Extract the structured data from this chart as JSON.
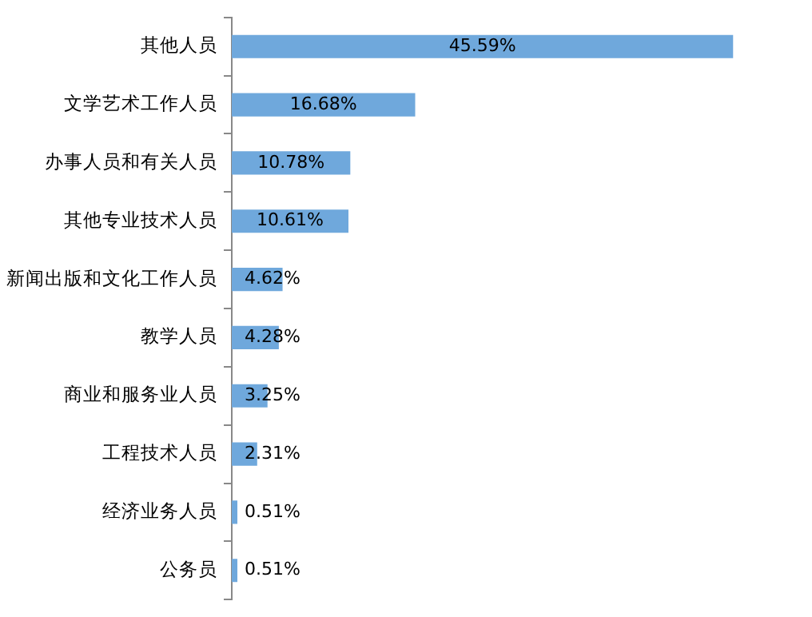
{
  "chart_data": {
    "type": "bar",
    "orientation": "horizontal",
    "categories": [
      "其他人员",
      "文学艺术工作人员",
      "办事人员和有关人员",
      "其他专业技术人员",
      "新闻出版和文化工作人员",
      "教学人员",
      "商业和服务业人员",
      "工程技术人员",
      "经济业务人员",
      "公务员"
    ],
    "values": [
      45.59,
      16.68,
      10.78,
      10.61,
      4.62,
      4.28,
      3.25,
      2.31,
      0.51,
      0.51
    ],
    "value_labels": [
      "45.59%",
      "16.68%",
      "10.78%",
      "10.61%",
      "4.62%",
      "4.28%",
      "3.25%",
      "2.31%",
      "0.51%",
      "0.51%"
    ],
    "color": "#6fa8dc",
    "legend": false
  }
}
